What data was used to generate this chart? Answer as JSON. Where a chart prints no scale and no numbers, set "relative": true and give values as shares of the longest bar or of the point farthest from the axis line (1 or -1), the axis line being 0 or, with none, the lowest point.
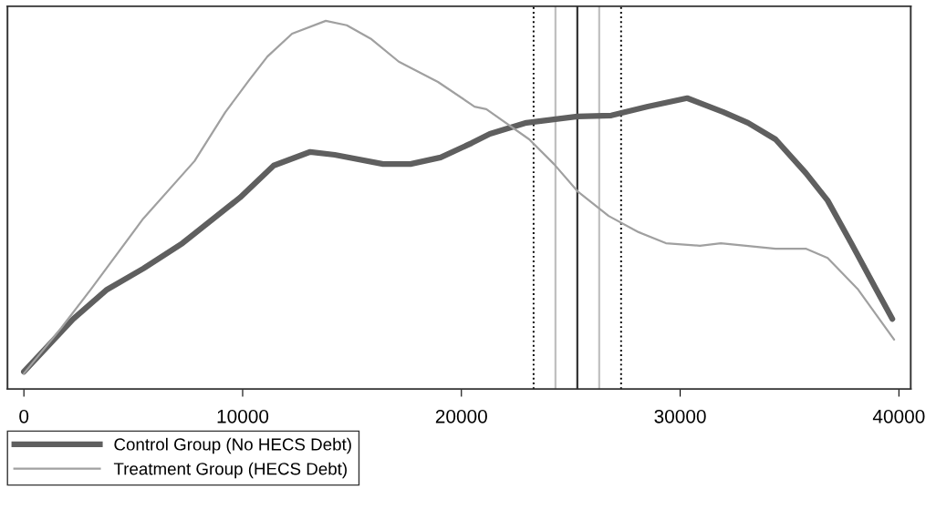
{
  "chart_data": {
    "type": "line",
    "relative": true,
    "xlim": [
      -750,
      40540
    ],
    "xticks": [
      0,
      10000,
      20000,
      30000,
      40000
    ],
    "grid": false,
    "legend": "bottom left",
    "marker": "none",
    "series": [
      {
        "name": "Control Group (No HECS Debt)",
        "color": "#5f5f5f",
        "x": [
          0,
          2250,
          3800,
          5460,
          7250,
          9880,
          11420,
          13090,
          14210,
          16420,
          17670,
          19050,
          20470,
          21300,
          22970,
          25300,
          26850,
          28520,
          30320,
          31980,
          33100,
          34360,
          35740,
          36740,
          37820,
          38950,
          39700
        ],
        "values": [
          0.047,
          0.19,
          0.27,
          0.327,
          0.396,
          0.52,
          0.607,
          0.644,
          0.636,
          0.611,
          0.611,
          0.629,
          0.668,
          0.693,
          0.723,
          0.74,
          0.743,
          0.767,
          0.79,
          0.752,
          0.723,
          0.678,
          0.587,
          0.512,
          0.396,
          0.272,
          0.19
        ]
      },
      {
        "name": "Treatment Group (HECS Debt)",
        "color": "#a0a0a0",
        "x": [
          0,
          1710,
          3080,
          5460,
          7800,
          9210,
          10300,
          11130,
          12260,
          13800,
          14760,
          15890,
          17140,
          18930,
          20600,
          21140,
          23100,
          24230,
          25310,
          26730,
          28100,
          29350,
          30900,
          31860,
          34360,
          35740,
          36740,
          38110,
          39780
        ],
        "values": [
          0.042,
          0.166,
          0.272,
          0.463,
          0.619,
          0.752,
          0.839,
          0.903,
          0.965,
          1.0,
          0.988,
          0.95,
          0.889,
          0.834,
          0.767,
          0.76,
          0.678,
          0.611,
          0.537,
          0.47,
          0.426,
          0.396,
          0.389,
          0.396,
          0.381,
          0.381,
          0.356,
          0.272,
          0.134
        ]
      }
    ],
    "ref_lines": [
      {
        "axis": "x",
        "value": 23300,
        "color": "#000000",
        "line_style": "dotted"
      },
      {
        "axis": "x",
        "value": 24300,
        "color": "#c0c0c0",
        "line_style": "solid"
      },
      {
        "axis": "x",
        "value": 25300,
        "color": "#333333",
        "line_style": "solid"
      },
      {
        "axis": "x",
        "value": 26300,
        "color": "#c0c0c0",
        "line_style": "solid"
      },
      {
        "axis": "x",
        "value": 27300,
        "color": "#000000",
        "line_style": "dotted"
      }
    ]
  }
}
